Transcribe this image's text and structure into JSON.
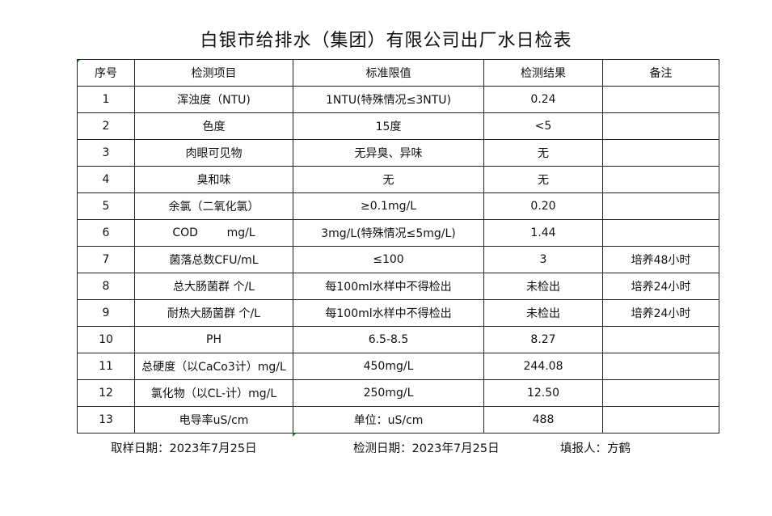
{
  "title": "白银市给排水（集团）有限公司出厂水日检表",
  "headers": [
    "序号",
    "检测项目",
    "标准限值",
    "检测结果",
    "备注"
  ],
  "rows": [
    [
      "1",
      "浑浊度（NTU)",
      "1NTU(特殊情况≤3NTU)",
      "0.24",
      ""
    ],
    [
      "2",
      "色度",
      "15度",
      "<5",
      ""
    ],
    [
      "3",
      "肉眼可见物",
      "无异臭、异味",
      "无",
      ""
    ],
    [
      "4",
      "臭和味",
      "无",
      "无",
      ""
    ],
    [
      "5",
      "余氯（二氧化氯）",
      "≥0.1mg/L",
      "0.20",
      ""
    ],
    [
      "6",
      "COD        mg/L",
      "3mg/L(特殊情况≤5mg/L)",
      "1.44",
      ""
    ],
    [
      "7",
      "菌落总数CFU/mL",
      "≤100",
      "3",
      "培养48小时"
    ],
    [
      "8",
      "总大肠菌群 个/L",
      "每100ml水样中不得检出",
      "未检出",
      "培养24小时"
    ],
    [
      "9",
      "耐热大肠菌群 个/L",
      "每100ml水样中不得检出",
      "未检出",
      "培养24小时"
    ],
    [
      "10",
      "PH",
      "6.5-8.5",
      "8.27",
      ""
    ],
    [
      "11",
      "总硬度（以CaCo3计）mg/L",
      "450mg/L",
      "244.08",
      ""
    ],
    [
      "12",
      "氯化物（以CL-计）mg/L",
      "250mg/L",
      "12.50",
      ""
    ],
    [
      "13",
      "电导率uS/cm",
      "单位：uS/cm",
      "488",
      ""
    ]
  ],
  "footer": {
    "sample_date": "取样日期：2023年7月25日",
    "test_date": "检测日期：2023年7月25日",
    "reporter": "填报人：方鹤"
  }
}
